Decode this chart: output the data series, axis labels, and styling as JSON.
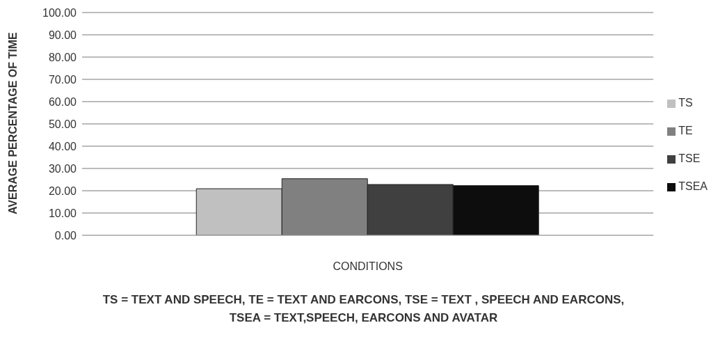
{
  "chart_data": {
    "type": "bar",
    "categories": [
      null
    ],
    "xlabel": "CONDITIONS",
    "ylabel": "AVERAGE PERCENTAGE OF TIME",
    "series": [
      {
        "name": "TS",
        "color": "#c0c0c0",
        "values": [
          20.9
        ]
      },
      {
        "name": "TE",
        "color": "#808080",
        "values": [
          25.4
        ]
      },
      {
        "name": "TSE",
        "color": "#404040",
        "values": [
          22.8
        ]
      },
      {
        "name": "TSEA",
        "color": "#0d0d0d",
        "values": [
          22.3
        ]
      }
    ],
    "ylim": [
      0,
      100
    ],
    "yticks": [
      {
        "value": 0,
        "label": "0.00"
      },
      {
        "value": 10,
        "label": "10.00"
      },
      {
        "value": 20,
        "label": "20.00"
      },
      {
        "value": 30,
        "label": "30.00"
      },
      {
        "value": 40,
        "label": "40.00"
      },
      {
        "value": 50,
        "label": "50.00"
      },
      {
        "value": 60,
        "label": "60.00"
      },
      {
        "value": 70,
        "label": "70.00"
      },
      {
        "value": 80,
        "label": "80.00"
      },
      {
        "value": 90,
        "label": "90.00"
      },
      {
        "value": 100,
        "label": "100.00"
      }
    ],
    "grid": "y",
    "legend": "right",
    "annotations": [
      "TS = TEXT AND SPEECH, TE = TEXT AND EARCONS, TSE = TEXT , SPEECH AND EARCONS, TSEA = TEXT,SPEECH, EARCONS AND AVATAR"
    ]
  }
}
